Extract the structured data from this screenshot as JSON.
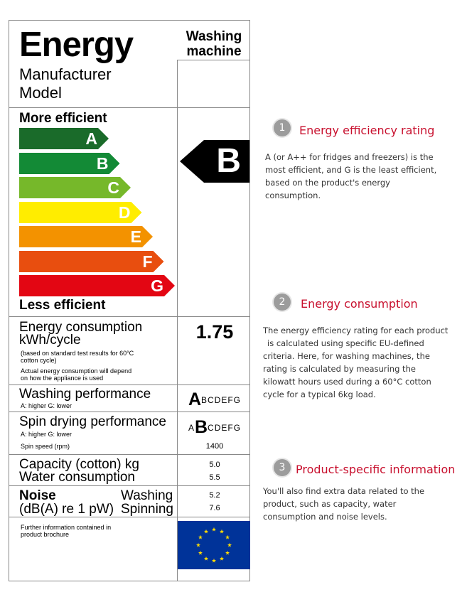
{
  "label": {
    "title": "Energy",
    "appliance_line1": "Washing",
    "appliance_line2": "machine",
    "manufacturer": "Manufacturer",
    "model": "Model",
    "more_efficient": "More efficient",
    "less_efficient": "Less efficient",
    "bars": [
      {
        "letter": "A",
        "color": "#1a6b2a"
      },
      {
        "letter": "B",
        "color": "#138a36"
      },
      {
        "letter": "C",
        "color": "#76b82a"
      },
      {
        "letter": "D",
        "color": "#ffed00"
      },
      {
        "letter": "E",
        "color": "#f39200"
      },
      {
        "letter": "F",
        "color": "#e84e0f"
      },
      {
        "letter": "G",
        "color": "#e30613"
      }
    ],
    "rating": "B",
    "consumption_line1": "Energy consumption",
    "consumption_line2": "kWh/cycle",
    "consumption_note1": "(based on standard test results for 60°C",
    "consumption_note2": "cotton cycle)",
    "consumption_note3": "Actual energy consumption will depend",
    "consumption_note4": "on how the appliance is used",
    "consumption_value": "1.75",
    "washing_perf": "Washing performance",
    "washing_perf_scale_note": "A: higher   G: lower",
    "washing_perf_big": "A",
    "washing_perf_rest": "BCDEFG",
    "spin_perf": "Spin drying performance",
    "spin_perf_scale_note": "A: higher   G: lower",
    "spin_perf_pre": "A",
    "spin_perf_big": "B",
    "spin_perf_rest": "CDEFG",
    "spin_speed_label": "Spin speed (rpm)",
    "spin_speed_value": "1400",
    "capacity_label": "Capacity (cotton) kg",
    "capacity_value": "5.0",
    "water_label": "Water consumption",
    "water_value": "5.5",
    "noise_line1": "Noise",
    "noise_line2": "(dB(A) re 1 pW)",
    "noise_washing": "Washing",
    "noise_spinning": "Spinning",
    "noise_washing_value": "5.2",
    "noise_spinning_value": "7.6",
    "further_info1": "Further information contained in",
    "further_info2": "product brochure"
  },
  "annotations": [
    {
      "num": "1",
      "title": "Energy efficiency rating",
      "body": [
        "A (or A++ for fridges and freezers) is the",
        "most efficient, and G is the least efficient,",
        "based on the product's energy",
        "consumption."
      ]
    },
    {
      "num": "2",
      "title": "Energy consumption",
      "body": [
        "The energy efficiency rating for each product",
        "is calculated using specific EU-defined",
        "criteria. Here, for washing machines, the",
        "rating is calculated by measuring the",
        "kilowatt hours used during a 60°C cotton",
        "cycle for a typical 6kg load."
      ]
    },
    {
      "num": "3",
      "title": "Product-specific information",
      "body": [
        "You'll also find extra data related to the",
        "product, such as capacity, water",
        "consumption and noise levels."
      ]
    }
  ],
  "colors": {
    "accent": "#c8102e",
    "rating_arrow": "#000000",
    "eu_flag": "#003399",
    "eu_star": "#ffdd00"
  }
}
